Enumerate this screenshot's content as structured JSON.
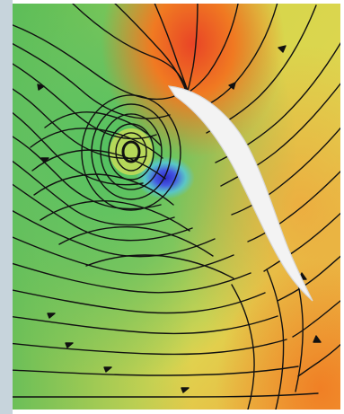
{
  "image": {
    "colors": {
      "strip": "#c7d4dc",
      "base_yellow": "#d8d84a",
      "orange_hot": "#f07a22",
      "red_hot": "#e94426",
      "yellow": "#e3d857",
      "green": "#4fbf63",
      "cyan": "#53c8df",
      "blue": "#4b5fe2",
      "deep_blue": "#2f2ac8",
      "blade": "#f3f3f3",
      "streamline": "#111111"
    },
    "elements": {
      "blade": "curved-blade-shape",
      "vortex": "streamline-vortex",
      "field": "flow-field"
    }
  }
}
